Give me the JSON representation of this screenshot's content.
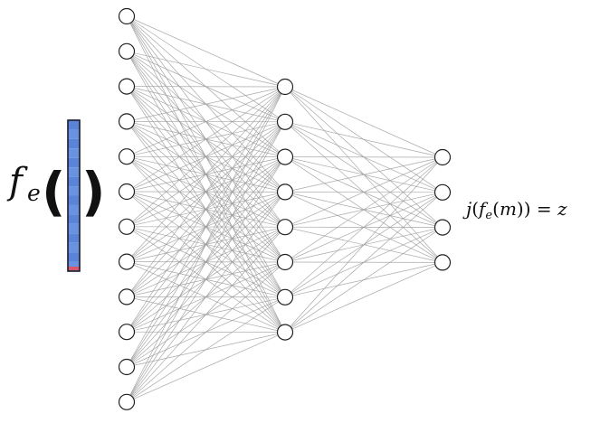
{
  "input_label": {
    "func": "f",
    "subscript": "e",
    "open_paren": "(",
    "close_paren": ")"
  },
  "output_label": {
    "j": "j",
    "open1": "(",
    "f": "f",
    "subscript": "e",
    "open2": "(",
    "m": "m",
    "close": "))",
    "equals": " = ",
    "z": "z"
  },
  "layers": {
    "input_nodes": 12,
    "hidden_nodes": 8,
    "output_nodes": 4
  },
  "feature_vector": {
    "segments": 16,
    "fill_color": "#5b84d9",
    "border_color": "#1a1a2a",
    "bottom_accent_color": "#d9576a"
  },
  "colors": {
    "edge": "#9a9a9a",
    "node_stroke": "#222222",
    "node_fill": "#ffffff"
  }
}
